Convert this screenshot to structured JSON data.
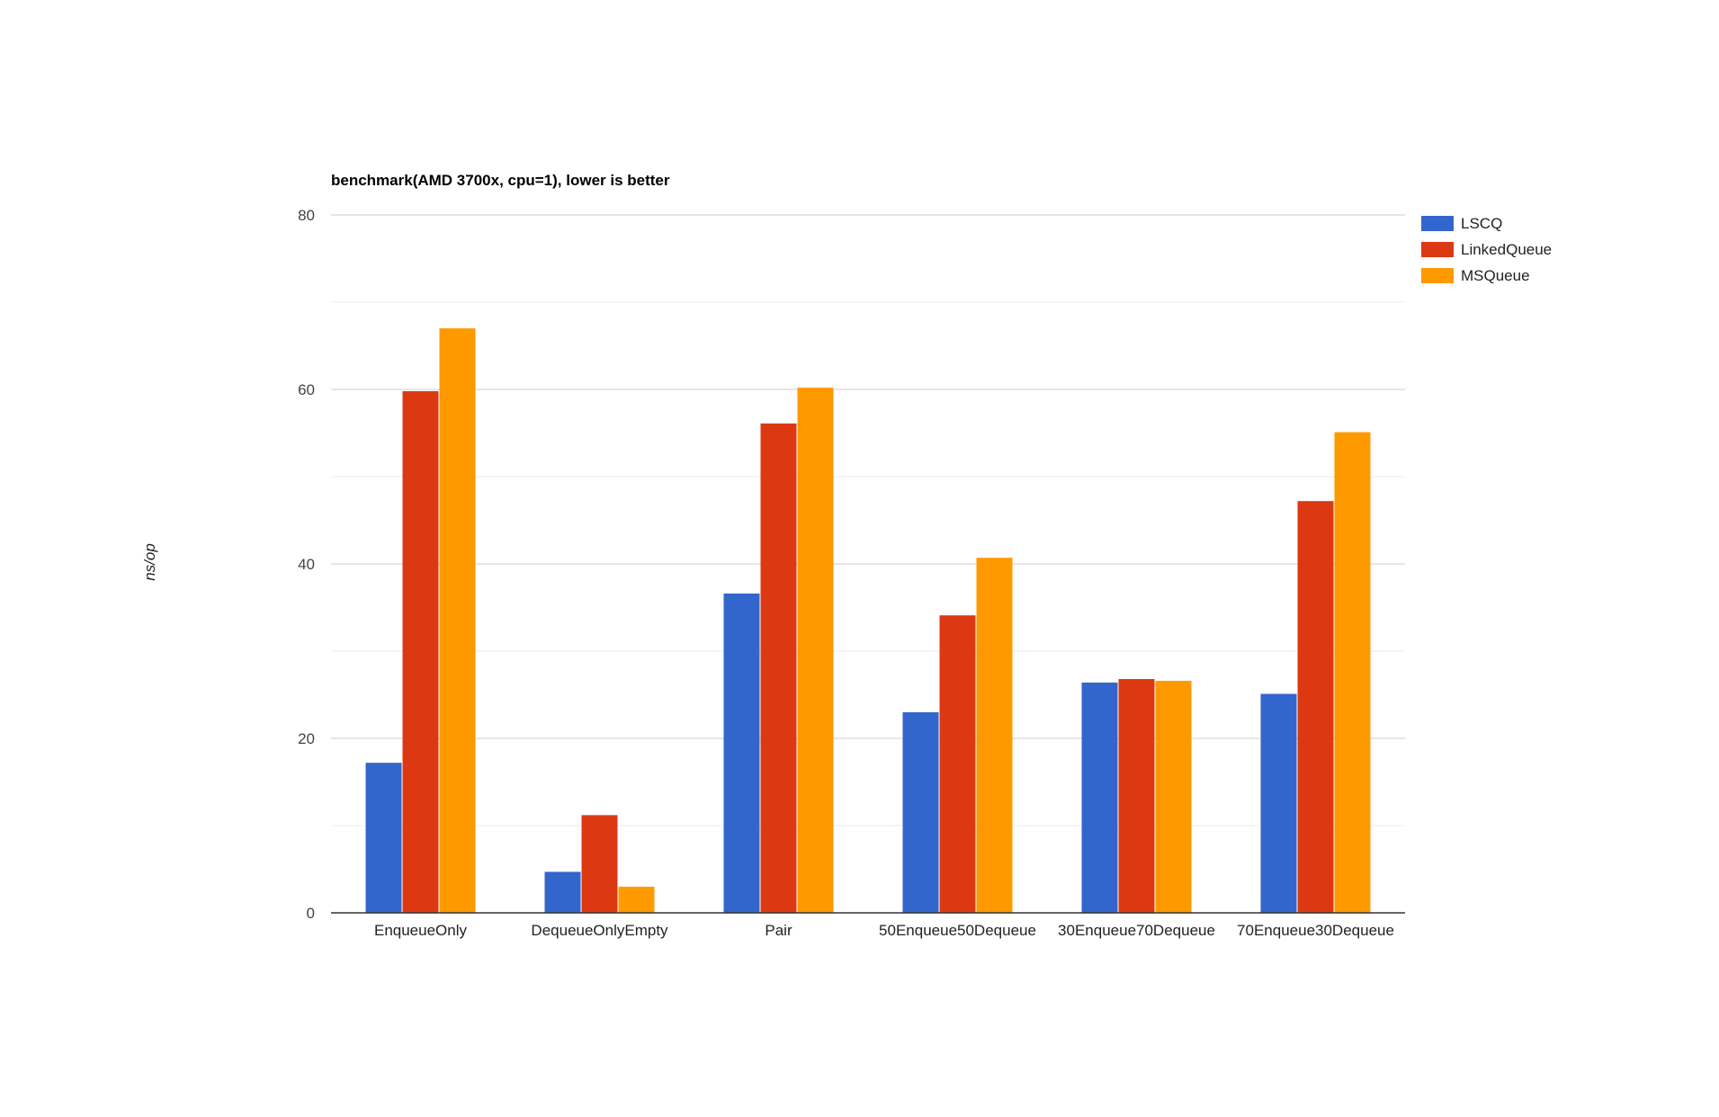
{
  "chart_data": {
    "type": "bar",
    "title": "benchmark(AMD 3700x, cpu=1), lower is better",
    "ylabel": "ns/op",
    "xlabel": "",
    "ylim": [
      0,
      80
    ],
    "yticks": [
      0,
      20,
      40,
      60,
      80
    ],
    "grid": true,
    "legend": "right",
    "categories": [
      "EnqueueOnly",
      "DequeueOnlyEmpty",
      "Pair",
      "50Enqueue50Dequeue",
      "30Enqueue70Dequeue",
      "70Enqueue30Dequeue"
    ],
    "series": [
      {
        "name": "LSCQ",
        "color": "#3366cc",
        "values": [
          17.2,
          4.7,
          36.6,
          23.0,
          26.4,
          25.1
        ]
      },
      {
        "name": "LinkedQueue",
        "color": "#dc3912",
        "values": [
          59.8,
          11.2,
          56.1,
          34.1,
          26.8,
          47.2
        ]
      },
      {
        "name": "MSQueue",
        "color": "#ff9900",
        "values": [
          67.0,
          3.0,
          60.2,
          40.7,
          26.6,
          55.1
        ]
      }
    ]
  }
}
